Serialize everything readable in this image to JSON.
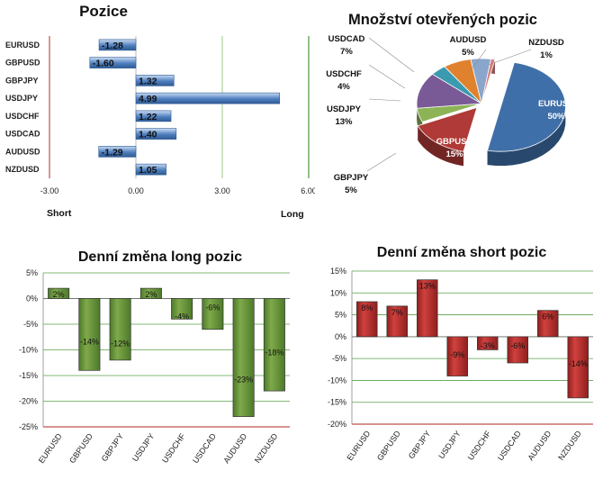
{
  "chart_data": [
    {
      "type": "bar",
      "orientation": "horizontal",
      "title": "Pozice",
      "categories": [
        "EURUSD",
        "GBPUSD",
        "GBPJPY",
        "USDJPY",
        "USDCHF",
        "USDCAD",
        "AUDUSD",
        "NZDUSD"
      ],
      "values": [
        -1.28,
        -1.6,
        1.32,
        4.99,
        1.22,
        1.4,
        -1.29,
        1.05
      ],
      "value_labels": [
        "-1.28",
        "-1.60",
        "1.32",
        "4.99",
        "1.22",
        "1.40",
        "-1.29",
        "1.05"
      ],
      "xlim": [
        -3.0,
        6.0
      ],
      "xticks": [
        "-3.00",
        "0.00",
        "3.00",
        "6.00"
      ],
      "left_label": "Short",
      "right_label": "Long",
      "colors": {
        "bar": "#4f7fbf",
        "bar_light": "#c9dcf2",
        "short_line": "#c0504d",
        "long_line": "#4a9a3a"
      }
    },
    {
      "type": "pie",
      "title": "Množství otevřených pozic",
      "slices": [
        {
          "label": "EURUSD",
          "pct_label": "50%",
          "value": 50,
          "color": "#3f6fa8"
        },
        {
          "label": "GBPUSD",
          "pct_label": "15%",
          "value": 15,
          "color": "#b03a37"
        },
        {
          "label": "GBPJPY",
          "pct_label": "5%",
          "value": 5,
          "color": "#8cb356"
        },
        {
          "label": "USDJPY",
          "pct_label": "13%",
          "value": 13,
          "color": "#7a5a96"
        },
        {
          "label": "USDCHF",
          "pct_label": "4%",
          "value": 4,
          "color": "#3a9ab0"
        },
        {
          "label": "USDCAD",
          "pct_label": "7%",
          "value": 7,
          "color": "#e0812e"
        },
        {
          "label": "AUDUSD",
          "pct_label": "5%",
          "value": 5,
          "color": "#8aa6cc"
        },
        {
          "label": "NZDUSD",
          "pct_label": "1%",
          "value": 1,
          "color": "#d77f7c"
        }
      ]
    },
    {
      "type": "bar",
      "title": "Denní změna long pozic",
      "categories": [
        "EURUSD",
        "GBPUSD",
        "GBPJPY",
        "USDJPY",
        "USDCHF",
        "USDCAD",
        "AUDUSD",
        "NZDUSD"
      ],
      "values": [
        2,
        -14,
        -12,
        2,
        -4,
        -6,
        -23,
        -18
      ],
      "value_labels": [
        "2%",
        "-14%",
        "-12%",
        "2%",
        "-4%",
        "-6%",
        "-23%",
        "-18%"
      ],
      "ylim": [
        -25,
        5
      ],
      "yticks": [
        "5%",
        "0%",
        "-5%",
        "-10%",
        "-15%",
        "-20%",
        "-25%"
      ],
      "colors": {
        "bar": "#7fa94a",
        "bar_dark": "#4d7a2a",
        "grid": "#5aa04a",
        "bottom_line": "#c0504d"
      }
    },
    {
      "type": "bar",
      "title": "Denní změna short pozic",
      "categories": [
        "EURUSD",
        "GBPUSD",
        "GBPJPY",
        "USDJPY",
        "USDCHF",
        "USDCAD",
        "AUDUSD",
        "NZDUSD"
      ],
      "values": [
        8,
        7,
        13,
        -9,
        -3,
        -6,
        6,
        -14
      ],
      "value_labels": [
        "8%",
        "7%",
        "13%",
        "-9%",
        "-3%",
        "-6%",
        "6%",
        "-14%"
      ],
      "ylim": [
        -20,
        15
      ],
      "yticks": [
        "15%",
        "10%",
        "5%",
        "0%",
        "-5%",
        "-10%",
        "-15%",
        "-20%"
      ],
      "colors": {
        "bar": "#d0413e",
        "bar_dark": "#8e1f1d",
        "grid": "#5aa04a",
        "bottom_line": "#c0504d"
      }
    }
  ]
}
